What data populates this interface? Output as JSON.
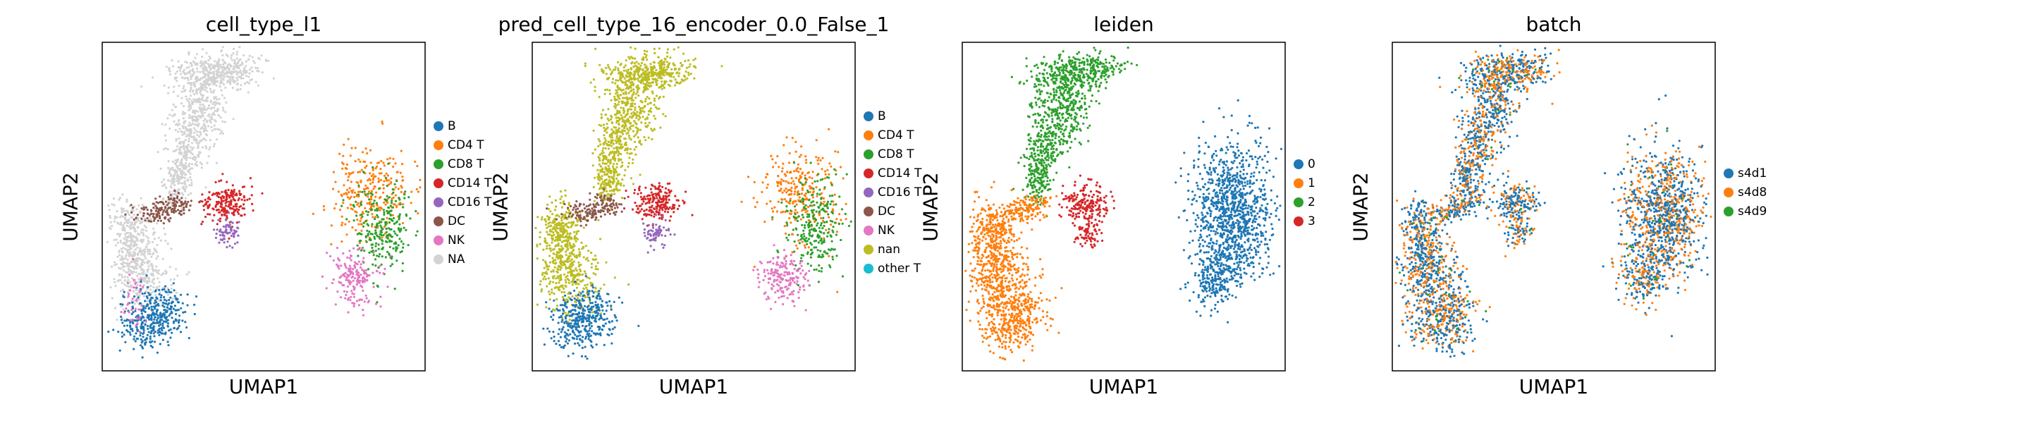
{
  "chart_data": [
    {
      "type": "scatter",
      "title": "cell_type_l1",
      "xlabel": "UMAP1",
      "ylabel": "UMAP2",
      "legend": {
        "placement": "right",
        "entries": [
          {
            "label": "B",
            "color": "#1f77b4"
          },
          {
            "label": "CD4 T",
            "color": "#ff7f0e"
          },
          {
            "label": "CD8 T",
            "color": "#2ca02c"
          },
          {
            "label": "CD14 T",
            "color": "#d62728"
          },
          {
            "label": "CD16 T",
            "color": "#9467bd"
          },
          {
            "label": "DC",
            "color": "#8c564b"
          },
          {
            "label": "NK",
            "color": "#e377c2"
          },
          {
            "label": "NA",
            "color": "#d3d3d3"
          }
        ]
      }
    },
    {
      "type": "scatter",
      "title": "pred_cell_type_16_encoder_0.0_False_1",
      "xlabel": "UMAP1",
      "ylabel": "UMAP2",
      "legend": {
        "placement": "right",
        "entries": [
          {
            "label": "B",
            "color": "#1f77b4"
          },
          {
            "label": "CD4 T",
            "color": "#ff7f0e"
          },
          {
            "label": "CD8 T",
            "color": "#2ca02c"
          },
          {
            "label": "CD14 T",
            "color": "#d62728"
          },
          {
            "label": "CD16 T",
            "color": "#9467bd"
          },
          {
            "label": "DC",
            "color": "#8c564b"
          },
          {
            "label": "NK",
            "color": "#e377c2"
          },
          {
            "label": "nan",
            "color": "#bcbd22"
          },
          {
            "label": "other T",
            "color": "#17becf"
          }
        ]
      }
    },
    {
      "type": "scatter",
      "title": "leiden",
      "xlabel": "UMAP1",
      "ylabel": "UMAP2",
      "legend": {
        "placement": "right",
        "entries": [
          {
            "label": "0",
            "color": "#1f77b4"
          },
          {
            "label": "1",
            "color": "#ff7f0e"
          },
          {
            "label": "2",
            "color": "#2ca02c"
          },
          {
            "label": "3",
            "color": "#d62728"
          }
        ]
      }
    },
    {
      "type": "scatter",
      "title": "batch",
      "xlabel": "UMAP1",
      "ylabel": "UMAP2",
      "legend": {
        "placement": "right",
        "entries": [
          {
            "label": "s4d1",
            "color": "#1f77b4"
          },
          {
            "label": "s4d8",
            "color": "#ff7f0e"
          },
          {
            "label": "s4d9",
            "color": "#2ca02c"
          }
        ]
      }
    }
  ]
}
